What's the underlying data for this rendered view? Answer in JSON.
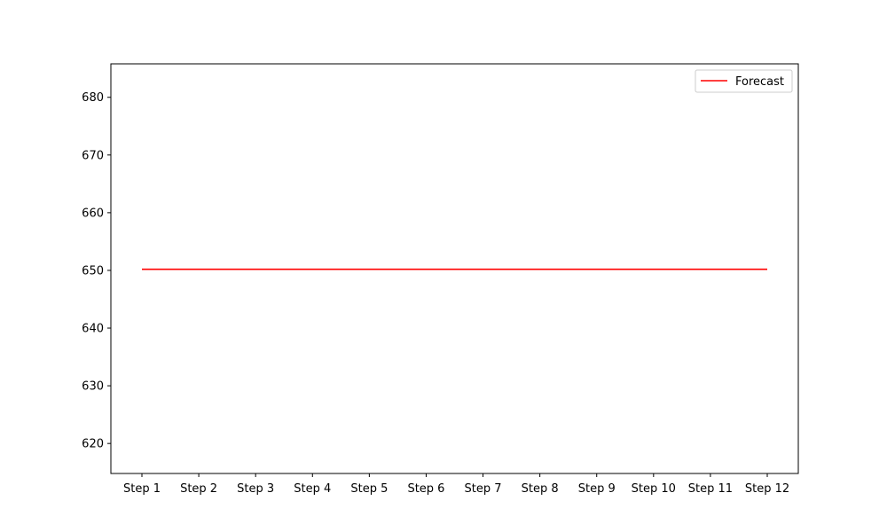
{
  "chart_data": {
    "type": "line",
    "title": "",
    "xlabel": "",
    "ylabel": "",
    "categories": [
      "Step 1",
      "Step 2",
      "Step 3",
      "Step 4",
      "Step 5",
      "Step 6",
      "Step 7",
      "Step 8",
      "Step 9",
      "Step 10",
      "Step 11",
      "Step 12"
    ],
    "series": [
      {
        "name": "Forecast",
        "color": "#ff0000",
        "values": [
          650.2,
          650.2,
          650.2,
          650.2,
          650.2,
          650.2,
          650.2,
          650.2,
          650.2,
          650.2,
          650.2,
          650.2
        ]
      }
    ],
    "ylim": [
      614.8,
      685.8
    ],
    "yticks": [
      620,
      630,
      640,
      650,
      660,
      670,
      680
    ],
    "grid": false,
    "legend_position": "top-right"
  }
}
